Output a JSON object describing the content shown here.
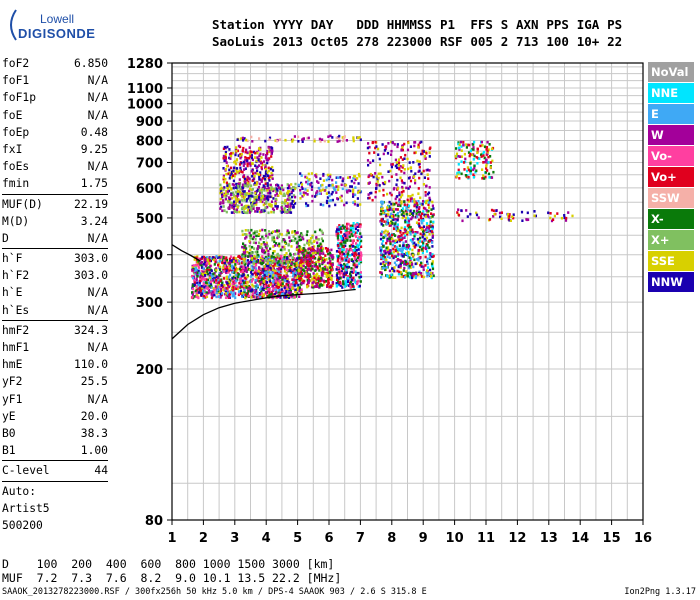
{
  "logo": {
    "line1": "Lowell",
    "line2": "DIGISONDE"
  },
  "header": {
    "labels": [
      "Station",
      "YYYY",
      "DAY",
      "DDD",
      "HHMMSS",
      "P1",
      "FFS",
      "S",
      "AXN",
      "PPS",
      "IGA",
      "PS"
    ],
    "values": [
      "SaoLuis",
      "2013",
      "Oct05",
      "278",
      "223000",
      "RSF",
      "005",
      "2",
      "713",
      "100",
      "10+",
      "22"
    ]
  },
  "params": [
    {
      "group": [
        {
          "name": "foF2",
          "value": "6.850"
        },
        {
          "name": "foF1",
          "value": "N/A"
        },
        {
          "name": "foF1p",
          "value": "N/A"
        },
        {
          "name": "foE",
          "value": "N/A"
        },
        {
          "name": "foEp",
          "value": "0.48"
        },
        {
          "name": "fxI",
          "value": "9.25"
        },
        {
          "name": "foEs",
          "value": "N/A"
        },
        {
          "name": "fmin",
          "value": "1.75"
        }
      ]
    },
    {
      "group": [
        {
          "name": "MUF(D)",
          "value": "22.19"
        },
        {
          "name": "M(D)",
          "value": "3.24"
        },
        {
          "name": "D",
          "value": "N/A"
        }
      ]
    },
    {
      "group": [
        {
          "name": "h`F",
          "value": "303.0"
        },
        {
          "name": "h`F2",
          "value": "303.0"
        },
        {
          "name": "h`E",
          "value": "N/A"
        },
        {
          "name": "h`Es",
          "value": "N/A"
        }
      ]
    },
    {
      "group": [
        {
          "name": "hmF2",
          "value": "324.3"
        },
        {
          "name": "hmF1",
          "value": "N/A"
        },
        {
          "name": "hmE",
          "value": "110.0"
        },
        {
          "name": "yF2",
          "value": "25.5"
        },
        {
          "name": "yF1",
          "value": "N/A"
        },
        {
          "name": "yE",
          "value": "20.0"
        },
        {
          "name": "B0",
          "value": "38.3"
        },
        {
          "name": "B1",
          "value": "1.00"
        }
      ]
    },
    {
      "group": [
        {
          "name": "C-level",
          "value": "44"
        }
      ]
    },
    {
      "group": [
        {
          "name": "Auto:",
          "value": ""
        },
        {
          "name": "Artist5",
          "value": ""
        },
        {
          "name": "500200",
          "value": ""
        }
      ]
    }
  ],
  "legend": [
    {
      "label": "NoVal",
      "color": "#a0a0a0"
    },
    {
      "label": "NNE",
      "color": "#00e5ff"
    },
    {
      "label": "E",
      "color": "#3fa9f5"
    },
    {
      "label": "W",
      "color": "#a3009a"
    },
    {
      "label": "Vo-",
      "color": "#ff3fa0"
    },
    {
      "label": "Vo+",
      "color": "#e0001e"
    },
    {
      "label": "SSW",
      "color": "#f5b0a8"
    },
    {
      "label": "X-",
      "color": "#0a7a0a"
    },
    {
      "label": "X+",
      "color": "#80c060"
    },
    {
      "label": "SSE",
      "color": "#d8d000"
    },
    {
      "label": "NNW",
      "color": "#1a00b0"
    }
  ],
  "dmuf": {
    "d_label": "D",
    "d_values": "100  200  400  600  800 1000 1500 3000 [km]",
    "muf_label": "MUF",
    "muf_values": "7.2  7.3  7.6  8.2  9.0 10.1 13.5 22.2 [MHz]"
  },
  "footer": {
    "left": "SAAOK_2013278223000.RSF / 300fx256h 50 kHz 5.0 km / DPS-4 SAAOK 903 / 2.6 S 315.8 E",
    "right": "Ion2Png 1.3.17"
  },
  "chart_data": {
    "type": "scatter",
    "x_ticks": [
      1,
      2,
      3,
      4,
      5,
      6,
      7,
      8,
      9,
      10,
      11,
      12,
      13,
      14,
      15,
      16
    ],
    "y_ticks": [
      80,
      200,
      300,
      400,
      500,
      600,
      700,
      800,
      900,
      1000,
      1100,
      1280
    ],
    "xlim": [
      1,
      16
    ],
    "ylim": [
      80,
      1280
    ],
    "y_scale": "log",
    "grid": true,
    "trace": {
      "x": [
        1.0,
        1.5,
        2.0,
        2.5,
        3.0,
        3.5,
        4.0,
        4.5,
        5.0,
        5.5,
        6.0,
        6.5,
        6.85
      ],
      "y": [
        240,
        262,
        278,
        290,
        298,
        303,
        308,
        312,
        314,
        316,
        318,
        322,
        324
      ]
    },
    "trace2": {
      "x": [
        1.0,
        1.3,
        1.6,
        1.9
      ],
      "y": [
        425,
        410,
        398,
        385
      ]
    },
    "clusters": [
      {
        "x": [
          1.6,
          5.1
        ],
        "y": [
          310,
          400
        ],
        "n": 1400,
        "colors": [
          "#e0001e",
          "#ff3fa0",
          "#a3009a",
          "#0a7a0a",
          "#1a00b0",
          "#d8d000",
          "#3fa9f5"
        ]
      },
      {
        "x": [
          3.2,
          5.8
        ],
        "y": [
          380,
          470
        ],
        "n": 320,
        "colors": [
          "#d8d000",
          "#0a7a0a",
          "#80c060",
          "#a3009a"
        ]
      },
      {
        "x": [
          5.0,
          6.1
        ],
        "y": [
          330,
          420
        ],
        "n": 350,
        "colors": [
          "#e0001e",
          "#d8d000",
          "#0a7a0a",
          "#a3009a"
        ]
      },
      {
        "x": [
          6.2,
          7.0
        ],
        "y": [
          330,
          490
        ],
        "n": 380,
        "colors": [
          "#e0001e",
          "#ff3fa0",
          "#1a00b0",
          "#00e5ff",
          "#0a7a0a"
        ]
      },
      {
        "x": [
          7.6,
          9.3
        ],
        "y": [
          350,
          560
        ],
        "n": 700,
        "colors": [
          "#1a00b0",
          "#3fa9f5",
          "#00e5ff",
          "#a3009a",
          "#d8d000",
          "#e0001e",
          "#0a7a0a"
        ]
      },
      {
        "x": [
          2.5,
          4.9
        ],
        "y": [
          520,
          620
        ],
        "n": 450,
        "colors": [
          "#d8d000",
          "#a3009a",
          "#1a00b0",
          "#80c060"
        ]
      },
      {
        "x": [
          2.6,
          4.2
        ],
        "y": [
          620,
          780
        ],
        "n": 250,
        "colors": [
          "#a3009a",
          "#1a00b0",
          "#d8d000",
          "#e0001e"
        ]
      },
      {
        "x": [
          5.0,
          7.0
        ],
        "y": [
          540,
          660
        ],
        "n": 160,
        "colors": [
          "#1a00b0",
          "#d8d000",
          "#a3009a",
          "#3fa9f5"
        ]
      },
      {
        "x": [
          7.2,
          9.2
        ],
        "y": [
          560,
          800
        ],
        "n": 220,
        "colors": [
          "#a3009a",
          "#d8d000",
          "#1a00b0",
          "#e0001e"
        ]
      },
      {
        "x": [
          10.0,
          11.2
        ],
        "y": [
          640,
          800
        ],
        "n": 140,
        "colors": [
          "#d8d000",
          "#a3009a",
          "#00e5ff",
          "#0a7a0a",
          "#e0001e"
        ]
      },
      {
        "x": [
          10.0,
          13.8
        ],
        "y": [
          495,
          530
        ],
        "n": 60,
        "colors": [
          "#a3009a",
          "#e0001e",
          "#d8d000",
          "#1a00b0"
        ]
      },
      {
        "x": [
          3.0,
          7.0
        ],
        "y": [
          800,
          830
        ],
        "n": 60,
        "colors": [
          "#d8d000",
          "#1a00b0",
          "#f5b0a8",
          "#a3009a"
        ]
      }
    ]
  }
}
